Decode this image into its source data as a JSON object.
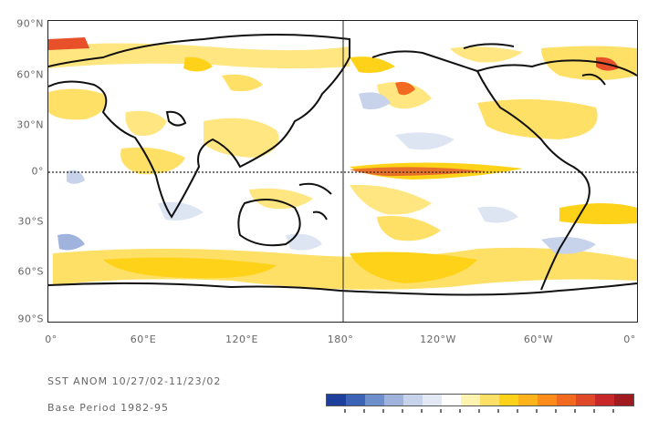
{
  "map": {
    "lat_labels": [
      "90°N",
      "60°N",
      "30°N",
      "0°",
      "30°S",
      "60°S",
      "90°S"
    ],
    "lon_labels": [
      "0°",
      "60°E",
      "120°E",
      "180°",
      "120°W",
      "60°W",
      "0°"
    ]
  },
  "captions": {
    "line1": "SST ANOM  10/27/02-11/23/02",
    "line2": "Base Period  1982-95"
  },
  "colorbar": {
    "colors": [
      "#1f3f9c",
      "#3d63b7",
      "#6f8fcc",
      "#9fb3dc",
      "#c7d3ea",
      "#e3e9f4",
      "#ffffff",
      "#fff3b0",
      "#ffe066",
      "#ffd21a",
      "#ffb31a",
      "#ff8c1a",
      "#f26a1f",
      "#e0482a",
      "#c8282a",
      "#a01a20"
    ]
  }
}
